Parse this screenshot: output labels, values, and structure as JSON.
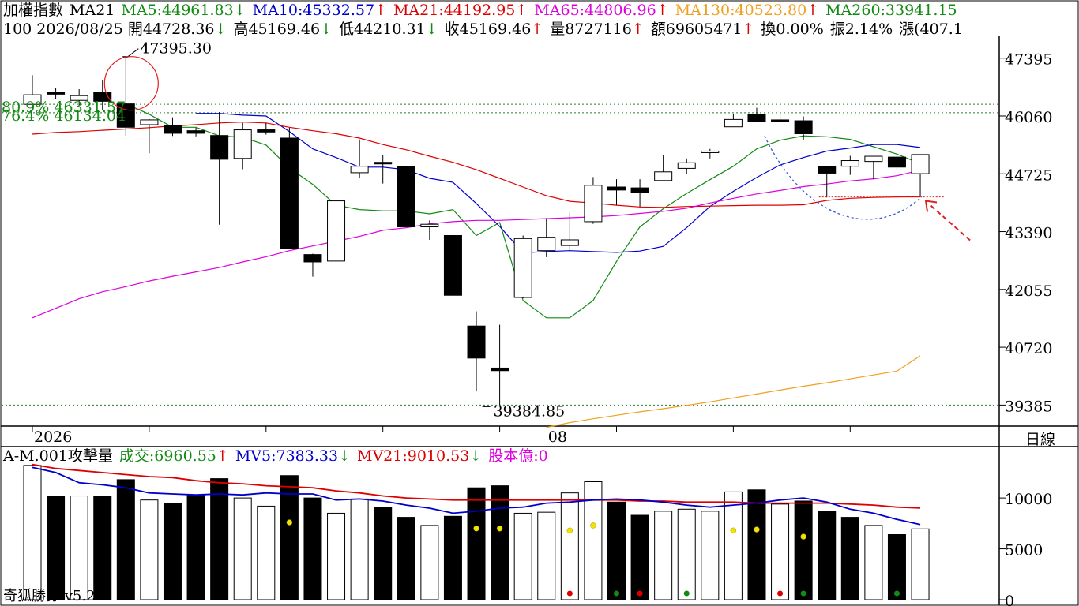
{
  "header": {
    "row1": [
      {
        "text": "加權指數",
        "color": "#000000",
        "arrow": ""
      },
      {
        "text": "MA21",
        "color": "#000000",
        "arrow": ""
      },
      {
        "text": "MA5:44961.83",
        "color": "#138a13",
        "arrow": "↓"
      },
      {
        "text": "MA10:45332.57",
        "color": "#0000cc",
        "arrow": "↑"
      },
      {
        "text": "MA21:44192.95",
        "color": "#dd0000",
        "arrow": "↑"
      },
      {
        "text": "MA65:44806.96",
        "color": "#dd00dd",
        "arrow": "↑"
      },
      {
        "text": "MA130:40523.80",
        "color": "#f0a020",
        "arrow": "↑"
      },
      {
        "text": "MA260:33941.15",
        "color": "#138a13",
        "arrow": ""
      }
    ],
    "row2": [
      {
        "text": "100 2026/08/25 開44728.36",
        "arrow": "↓"
      },
      {
        "text": "高45169.46",
        "arrow": "↓"
      },
      {
        "text": "低44210.31",
        "arrow": "↓"
      },
      {
        "text": "收45169.46",
        "arrow": "↑"
      },
      {
        "text": "量8727116",
        "arrow": "↑"
      },
      {
        "text": "額69605471",
        "arrow": "↑"
      },
      {
        "text": "換0.00%",
        "arrow": ""
      },
      {
        "text": "振2.14%",
        "arrow": ""
      },
      {
        "text": "漲(407.1",
        "arrow": ""
      }
    ],
    "vol_row": [
      {
        "text": "A-M.001攻擊量",
        "color": "#000000",
        "arrow": ""
      },
      {
        "text": "成交:6960.55",
        "color": "#138a13",
        "arrow": "↑"
      },
      {
        "text": "MV5:7383.33",
        "color": "#0000cc",
        "arrow": "↓"
      },
      {
        "text": "MV21:9010.53",
        "color": "#dd0000",
        "arrow": "↓"
      },
      {
        "text": "股本億:0",
        "color": "#dd00dd",
        "arrow": ""
      }
    ]
  },
  "footer_label": "奇狐勝券 v5.2",
  "period_label": "日線",
  "chart_data": {
    "type": "candlestick",
    "ylim": [
      38900,
      47900
    ],
    "price_ticks": [
      47395,
      46060,
      44725,
      43390,
      42055,
      40720,
      39385
    ],
    "date_labels": [
      {
        "index": 0,
        "label": "2026"
      },
      {
        "index": 22,
        "label": "08"
      }
    ],
    "annotations": {
      "high_label": "47395.30",
      "low_label": "39384.85",
      "fib": [
        {
          "label": "80.9% 46331.57",
          "value": 46331.57
        },
        {
          "label": "76.4% 46134.04",
          "value": 46134.04
        }
      ],
      "support_line": 44190
    },
    "candles": [
      {
        "o": 46330,
        "h": 47000,
        "l": 46200,
        "c": 46550
      },
      {
        "o": 46600,
        "h": 46700,
        "l": 46450,
        "c": 46580
      },
      {
        "o": 46420,
        "h": 46680,
        "l": 46300,
        "c": 46530
      },
      {
        "o": 46600,
        "h": 46900,
        "l": 46200,
        "c": 46400
      },
      {
        "o": 46340,
        "h": 47395.3,
        "l": 45600,
        "c": 45800
      },
      {
        "o": 45860,
        "h": 45990,
        "l": 45200,
        "c": 45970
      },
      {
        "o": 45850,
        "h": 46030,
        "l": 45600,
        "c": 45660
      },
      {
        "o": 45720,
        "h": 45790,
        "l": 45590,
        "c": 45660
      },
      {
        "o": 45610,
        "h": 46150,
        "l": 43550,
        "c": 45060
      },
      {
        "o": 45080,
        "h": 45900,
        "l": 44830,
        "c": 45740
      },
      {
        "o": 45740,
        "h": 45900,
        "l": 45630,
        "c": 45690
      },
      {
        "o": 45550,
        "h": 45790,
        "l": 43000,
        "c": 43000
      },
      {
        "o": 42860,
        "h": 42880,
        "l": 42350,
        "c": 42690
      },
      {
        "o": 42710,
        "h": 44100,
        "l": 42700,
        "c": 44100
      },
      {
        "o": 44750,
        "h": 45520,
        "l": 44620,
        "c": 44900
      },
      {
        "o": 44990,
        "h": 45150,
        "l": 44500,
        "c": 44970
      },
      {
        "o": 44900,
        "h": 44900,
        "l": 43500,
        "c": 43500
      },
      {
        "o": 43500,
        "h": 43650,
        "l": 43200,
        "c": 43560
      },
      {
        "o": 43300,
        "h": 43350,
        "l": 41900,
        "c": 41920
      },
      {
        "o": 41210,
        "h": 41550,
        "l": 39700,
        "c": 40470
      },
      {
        "o": 40240,
        "h": 41240,
        "l": 39384.85,
        "c": 40180
      },
      {
        "o": 41870,
        "h": 43300,
        "l": 41850,
        "c": 43230
      },
      {
        "o": 42950,
        "h": 43700,
        "l": 42800,
        "c": 43260
      },
      {
        "o": 43070,
        "h": 43830,
        "l": 42950,
        "c": 43200
      },
      {
        "o": 43620,
        "h": 44650,
        "l": 43570,
        "c": 44460
      },
      {
        "o": 44420,
        "h": 44600,
        "l": 44000,
        "c": 44350
      },
      {
        "o": 44400,
        "h": 44600,
        "l": 43960,
        "c": 44300
      },
      {
        "o": 44570,
        "h": 45150,
        "l": 44550,
        "c": 44770
      },
      {
        "o": 44850,
        "h": 45080,
        "l": 44730,
        "c": 44980
      },
      {
        "o": 45250,
        "h": 45300,
        "l": 45080,
        "c": 45250
      },
      {
        "o": 45810,
        "h": 46100,
        "l": 45810,
        "c": 45980
      },
      {
        "o": 46090,
        "h": 46250,
        "l": 45930,
        "c": 45940
      },
      {
        "o": 45970,
        "h": 46120,
        "l": 45920,
        "c": 45950
      },
      {
        "o": 45950,
        "h": 46050,
        "l": 45500,
        "c": 45650
      },
      {
        "o": 44900,
        "h": 44900,
        "l": 44180,
        "c": 44740
      },
      {
        "o": 44900,
        "h": 45140,
        "l": 44700,
        "c": 45030
      },
      {
        "o": 45010,
        "h": 45130,
        "l": 44600,
        "c": 45130
      },
      {
        "o": 45110,
        "h": 45200,
        "l": 44810,
        "c": 44880
      },
      {
        "o": 44728.36,
        "h": 45169.46,
        "l": 44210.31,
        "c": 45169.46
      }
    ],
    "ma_series": [
      {
        "name": "MA5",
        "color": "#138a13",
        "values": [
          null,
          null,
          null,
          null,
          46340,
          46100,
          45800,
          45800,
          45600,
          45570,
          45390,
          44860,
          44480,
          44000,
          43900,
          43870,
          43870,
          43800,
          43900,
          43300,
          43600,
          41800,
          41400,
          41400,
          41800,
          42700,
          43500,
          43920,
          44270,
          44590,
          44900,
          45300,
          45500,
          45600,
          45580,
          45520,
          45350,
          45180,
          44961.83
        ]
      },
      {
        "name": "MA10",
        "color": "#0000cc",
        "values": [
          null,
          null,
          null,
          null,
          null,
          null,
          null,
          46120,
          46120,
          46080,
          46060,
          45700,
          45300,
          45100,
          44880,
          44880,
          44820,
          44620,
          44530,
          44040,
          43510,
          42900,
          42930,
          42950,
          42930,
          42910,
          42940,
          43050,
          43480,
          43970,
          44320,
          44640,
          44930,
          45100,
          45250,
          45320,
          45400,
          45400,
          45332.57
        ]
      },
      {
        "name": "MA21",
        "color": "#dd0000",
        "values": [
          45640,
          45680,
          45700,
          45730,
          45760,
          45790,
          45830,
          45860,
          45900,
          45920,
          45900,
          45800,
          45720,
          45650,
          45550,
          45400,
          45280,
          45130,
          44990,
          44820,
          44620,
          44420,
          44220,
          44090,
          44050,
          44000,
          43960,
          43950,
          43970,
          43980,
          43990,
          44000,
          44000,
          44010,
          44110,
          44160,
          44180,
          44190,
          44192.95
        ]
      },
      {
        "name": "MA65",
        "color": "#dd00dd",
        "values": [
          41400,
          41620,
          41840,
          42000,
          42120,
          42250,
          42360,
          42460,
          42560,
          42690,
          42810,
          42950,
          43060,
          43170,
          43280,
          43420,
          43480,
          43570,
          43620,
          43650,
          43650,
          43670,
          43690,
          43710,
          43730,
          43760,
          43810,
          43860,
          43930,
          44050,
          44160,
          44260,
          44340,
          44430,
          44490,
          44560,
          44610,
          44680,
          44806.96
        ]
      },
      {
        "name": "MA130",
        "color": "#f0a020",
        "values": [
          null,
          null,
          null,
          null,
          null,
          null,
          null,
          null,
          null,
          null,
          null,
          null,
          null,
          null,
          null,
          null,
          null,
          null,
          null,
          null,
          null,
          null,
          38870,
          38980,
          39070,
          39150,
          39230,
          39300,
          39380,
          39460,
          39550,
          39640,
          39730,
          39820,
          39900,
          39990,
          40080,
          40170,
          40523.8
        ]
      }
    ],
    "volume": {
      "ylim": [
        0,
        13500
      ],
      "ticks": [
        0,
        5000,
        10000
      ],
      "bars": [
        {
          "v": 13200,
          "up": true
        },
        {
          "v": 10200,
          "up": false
        },
        {
          "v": 10200,
          "up": true
        },
        {
          "v": 10200,
          "up": false
        },
        {
          "v": 11800,
          "up": false
        },
        {
          "v": 9800,
          "up": true
        },
        {
          "v": 9500,
          "up": false
        },
        {
          "v": 10300,
          "up": false
        },
        {
          "v": 11900,
          "up": false
        },
        {
          "v": 10000,
          "up": true
        },
        {
          "v": 9200,
          "up": true
        },
        {
          "v": 12200,
          "up": false
        },
        {
          "v": 10000,
          "up": false
        },
        {
          "v": 8500,
          "up": true
        },
        {
          "v": 9900,
          "up": true
        },
        {
          "v": 9100,
          "up": false
        },
        {
          "v": 8100,
          "up": false
        },
        {
          "v": 7300,
          "up": true
        },
        {
          "v": 8200,
          "up": false
        },
        {
          "v": 11000,
          "up": false
        },
        {
          "v": 11200,
          "up": false
        },
        {
          "v": 8500,
          "up": true
        },
        {
          "v": 8600,
          "up": true
        },
        {
          "v": 10500,
          "up": true
        },
        {
          "v": 11600,
          "up": true
        },
        {
          "v": 9600,
          "up": false
        },
        {
          "v": 8300,
          "up": false
        },
        {
          "v": 8700,
          "up": true
        },
        {
          "v": 8900,
          "up": true
        },
        {
          "v": 8700,
          "up": true
        },
        {
          "v": 10600,
          "up": true
        },
        {
          "v": 10800,
          "up": false
        },
        {
          "v": 9400,
          "up": true
        },
        {
          "v": 9700,
          "up": false
        },
        {
          "v": 8700,
          "up": false
        },
        {
          "v": 8100,
          "up": false
        },
        {
          "v": 7300,
          "up": true
        },
        {
          "v": 6400,
          "up": false
        },
        {
          "v": 6960.55,
          "up": true
        }
      ],
      "mv5": [
        13000,
        12500,
        11500,
        11300,
        11000,
        10500,
        10400,
        10300,
        10400,
        10300,
        10500,
        10400,
        10400,
        9800,
        9900,
        9700,
        9300,
        9000,
        8500,
        8700,
        9000,
        9100,
        9500,
        9600,
        9800,
        9900,
        9800,
        9600,
        9300,
        9100,
        9300,
        9500,
        9800,
        10000,
        9600,
        8900,
        8500,
        7900,
        7383.33
      ],
      "mv21": [
        13300,
        12900,
        12700,
        12500,
        12300,
        12100,
        12000,
        11700,
        11500,
        11400,
        11200,
        11100,
        11000,
        10700,
        10500,
        10200,
        10000,
        9900,
        9800,
        9800,
        9800,
        9800,
        9800,
        9800,
        9800,
        9800,
        9700,
        9700,
        9600,
        9600,
        9600,
        9500,
        9500,
        9500,
        9500,
        9400,
        9300,
        9100,
        9010.53
      ],
      "yellow_dots": [
        {
          "i": 11,
          "v": 7600
        },
        {
          "i": 19,
          "v": 7000
        },
        {
          "i": 20,
          "v": 7000
        },
        {
          "i": 23,
          "v": 6800
        },
        {
          "i": 24,
          "v": 7300
        },
        {
          "i": 30,
          "v": 6800
        },
        {
          "i": 31,
          "v": 6900
        },
        {
          "i": 33,
          "v": 6200
        }
      ],
      "bottom_dots": [
        {
          "i": 23,
          "color": "#dd0000"
        },
        {
          "i": 25,
          "color": "#138a13"
        },
        {
          "i": 26,
          "color": "#dd0000"
        },
        {
          "i": 28,
          "color": "#138a13"
        },
        {
          "i": 32,
          "color": "#dd0000"
        },
        {
          "i": 33,
          "color": "#138a13"
        },
        {
          "i": 37,
          "color": "#138a13"
        }
      ]
    }
  }
}
